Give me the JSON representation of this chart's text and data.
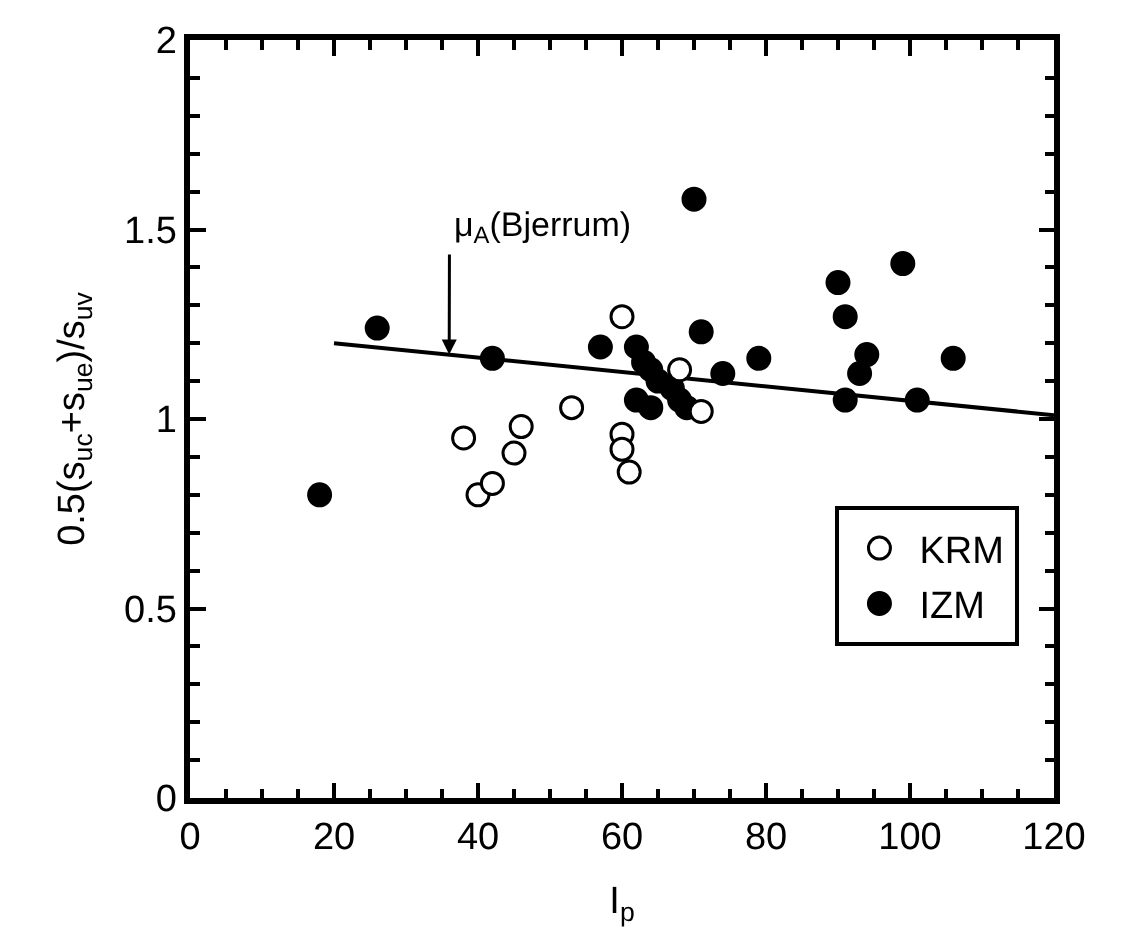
{
  "chart_data": {
    "type": "scatter",
    "xlabel": "I$_{p}$",
    "ylabel": "0.5(s$_{uc}$+s$_{ue}$)/s$_{uv}$",
    "xlim": [
      0,
      120
    ],
    "xticks": [
      0,
      20,
      40,
      60,
      80,
      100,
      120
    ],
    "ylim": [
      0,
      2
    ],
    "yticks": [
      0,
      0.5,
      1,
      1.5,
      2
    ],
    "legend": "bottom right",
    "series": [
      {
        "name": "KRM",
        "color": "#ffffff",
        "marker": "circle",
        "x": [
          38,
          40,
          42,
          45,
          46,
          53,
          60,
          60,
          60,
          61,
          68,
          71
        ],
        "values": [
          0.95,
          0.8,
          0.83,
          0.91,
          0.98,
          1.03,
          1.27,
          0.96,
          0.92,
          0.86,
          1.13,
          1.02
        ]
      },
      {
        "name": "IZM",
        "color": "#000000",
        "marker": "circle",
        "x": [
          18,
          26,
          42,
          57,
          62,
          63,
          64,
          65,
          62,
          64,
          67,
          68,
          69,
          70,
          71,
          74,
          79,
          90,
          91,
          91,
          93,
          94,
          99,
          101,
          106
        ],
        "values": [
          0.8,
          1.24,
          1.16,
          1.19,
          1.19,
          1.15,
          1.13,
          1.1,
          1.05,
          1.03,
          1.08,
          1.05,
          1.03,
          1.58,
          1.23,
          1.12,
          1.16,
          1.36,
          1.27,
          1.05,
          1.12,
          1.17,
          1.41,
          1.05,
          1.16
        ]
      },
      {
        "type": "line",
        "color": "#000000",
        "marker": "none",
        "line_style": "solid",
        "x": [
          20,
          120
        ],
        "values": [
          1.2,
          1.01
        ]
      }
    ],
    "annotations": [
      {
        "text": "μ$_{A}$(Bjerrum)",
        "x": 36,
        "y": 1.17
      }
    ]
  }
}
